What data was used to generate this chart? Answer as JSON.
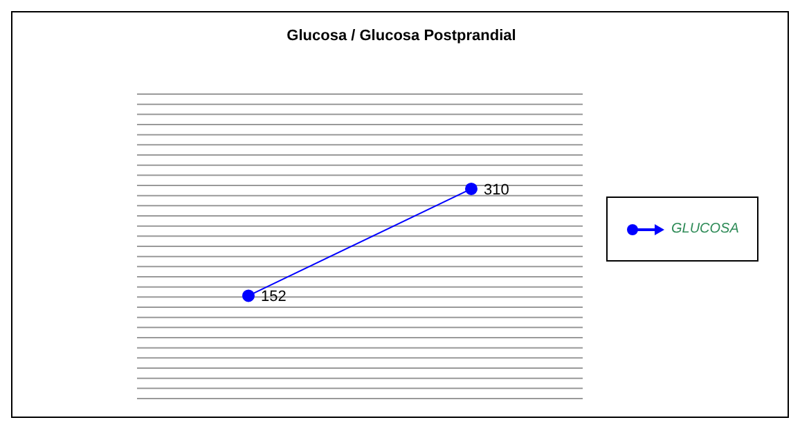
{
  "chart_data": {
    "type": "line",
    "title": "Glucosa / Glucosa Postprandial",
    "categories": [
      null,
      null
    ],
    "series": [
      {
        "name": "GLUCOSA",
        "color": "#0000ff",
        "values": [
          152,
          310
        ]
      }
    ],
    "grid": "y",
    "legend": "right",
    "tick_labels": false,
    "marker": "circle",
    "line_style": "solid",
    "data_labels": true
  }
}
